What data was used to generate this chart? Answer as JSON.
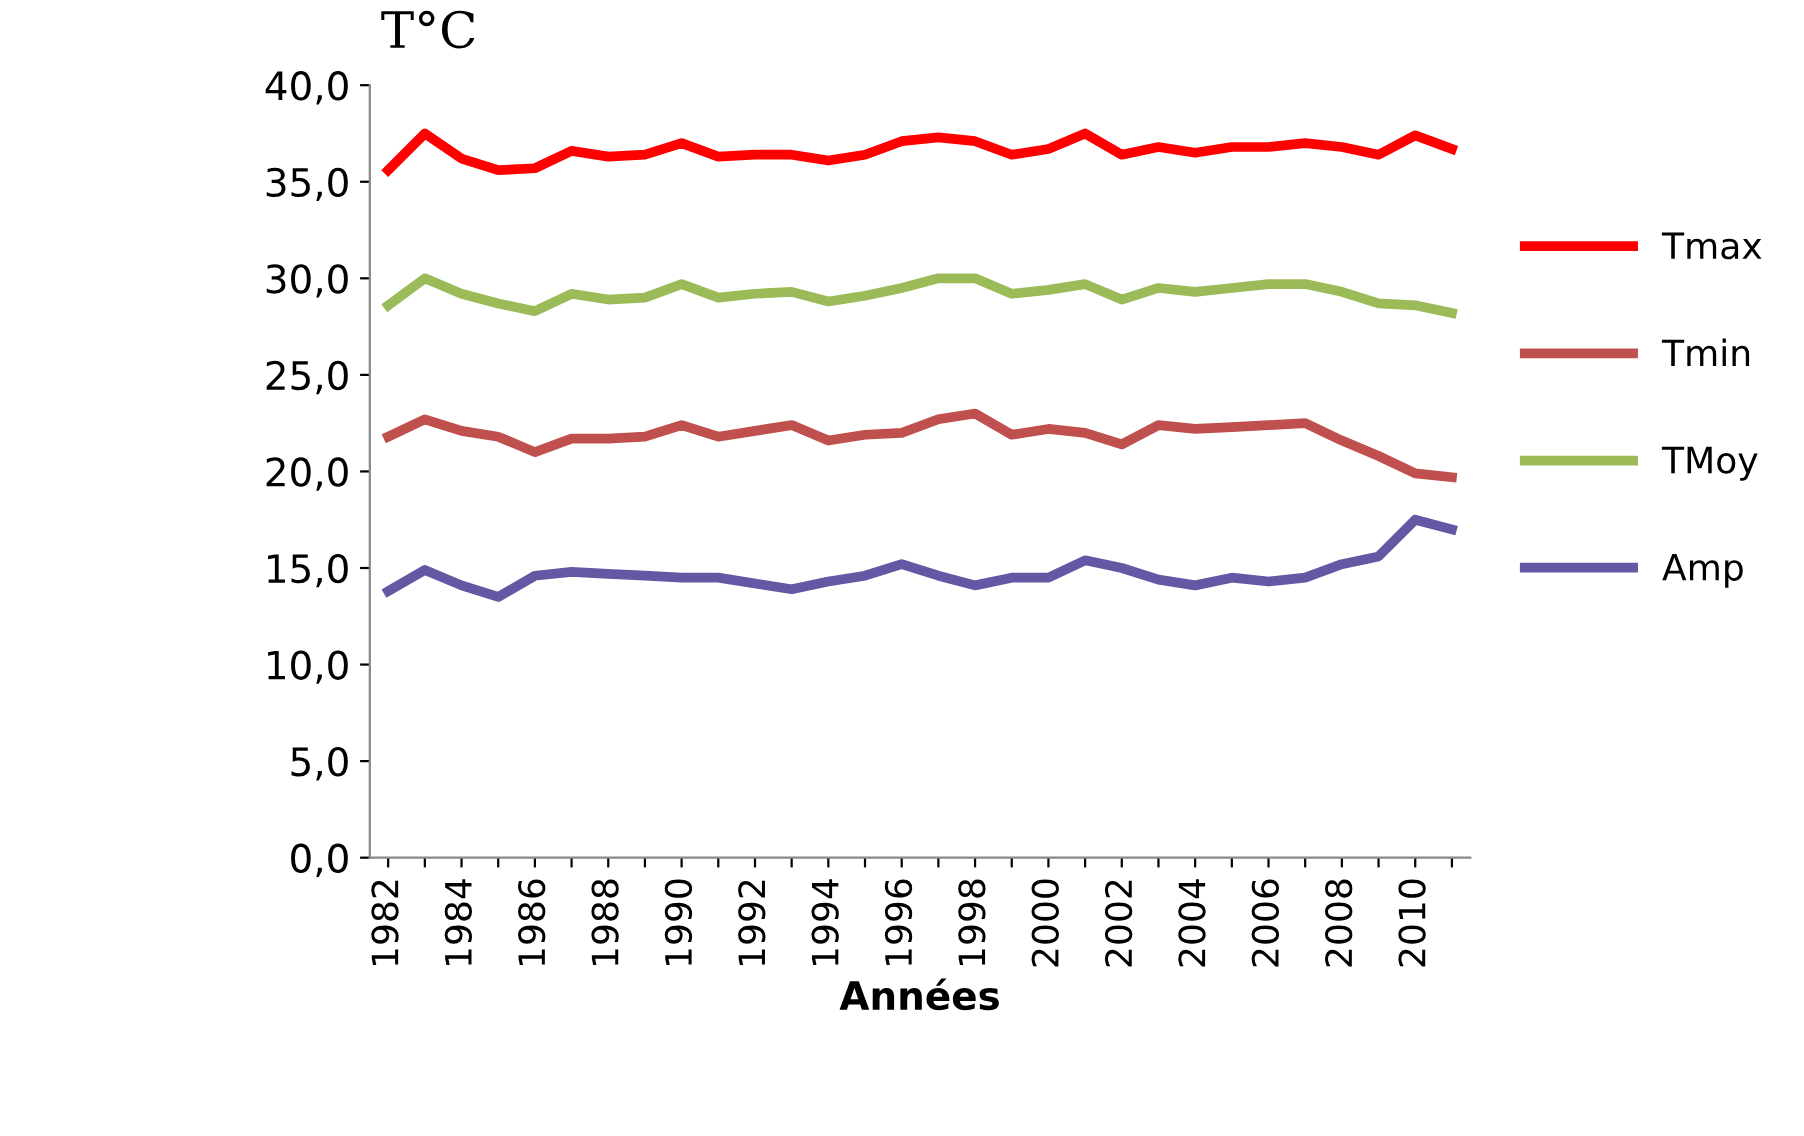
{
  "chart_data": {
    "type": "line",
    "ylabel": "T°C",
    "xlabel": "Années",
    "categories": [
      "1982",
      null,
      "1984",
      null,
      "1986",
      null,
      "1988",
      null,
      "1990",
      null,
      "1992",
      null,
      "1994",
      null,
      "1996",
      null,
      "1998",
      null,
      "2000",
      null,
      "2002",
      null,
      "2004",
      null,
      "2006",
      null,
      "2008",
      null,
      "2010",
      null
    ],
    "series": [
      {
        "name": "Tmax",
        "color": "#ff0000",
        "values": [
          35.6,
          37.5,
          36.2,
          35.6,
          35.7,
          36.6,
          36.3,
          36.4,
          37.0,
          36.3,
          36.4,
          36.4,
          36.1,
          36.4,
          37.1,
          37.3,
          37.1,
          36.4,
          36.7,
          37.5,
          36.4,
          36.8,
          36.5,
          36.8,
          36.8,
          37.0,
          36.8,
          36.4,
          37.4,
          36.7
        ]
      },
      {
        "name": "Tmin",
        "color": "#c0504d",
        "values": [
          21.8,
          22.7,
          22.1,
          21.8,
          21.0,
          21.7,
          21.7,
          21.8,
          22.4,
          21.8,
          22.1,
          22.4,
          21.6,
          21.9,
          22.0,
          22.7,
          23.0,
          21.9,
          22.2,
          22.0,
          21.4,
          22.4,
          22.2,
          22.3,
          22.4,
          22.5,
          21.6,
          20.8,
          19.9,
          19.7
        ]
      },
      {
        "name": "TMoy",
        "color": "#9bbb59",
        "values": [
          28.6,
          30.0,
          29.2,
          28.7,
          28.3,
          29.2,
          28.9,
          29.0,
          29.7,
          29.0,
          29.2,
          29.3,
          28.8,
          29.1,
          29.5,
          30.0,
          30.0,
          29.2,
          29.4,
          29.7,
          28.9,
          29.5,
          29.3,
          29.5,
          29.7,
          29.7,
          29.3,
          28.7,
          28.6,
          28.2
        ]
      },
      {
        "name": "Amp",
        "color": "#6557a4",
        "values": [
          13.8,
          14.9,
          14.1,
          13.5,
          14.6,
          14.8,
          14.7,
          14.6,
          14.5,
          14.5,
          14.2,
          13.9,
          14.3,
          14.6,
          15.2,
          14.6,
          14.1,
          14.5,
          14.5,
          15.4,
          15.0,
          14.4,
          14.1,
          14.5,
          14.3,
          14.5,
          15.2,
          15.6,
          17.5,
          17.0
        ]
      }
    ],
    "ylim": [
      0,
      40
    ],
    "yticks": [
      {
        "value": 0,
        "label": "0,0"
      },
      {
        "value": 5,
        "label": "5,0"
      },
      {
        "value": 10,
        "label": "10,0"
      },
      {
        "value": 15,
        "label": "15,0"
      },
      {
        "value": 20,
        "label": "20,0"
      },
      {
        "value": 25,
        "label": "25,0"
      },
      {
        "value": 30,
        "label": "30,0"
      },
      {
        "value": 35,
        "label": "35,0"
      },
      {
        "value": 40,
        "label": "40,0"
      }
    ],
    "grid": false,
    "legend": "right",
    "marker": "none",
    "line_style": "solid"
  }
}
